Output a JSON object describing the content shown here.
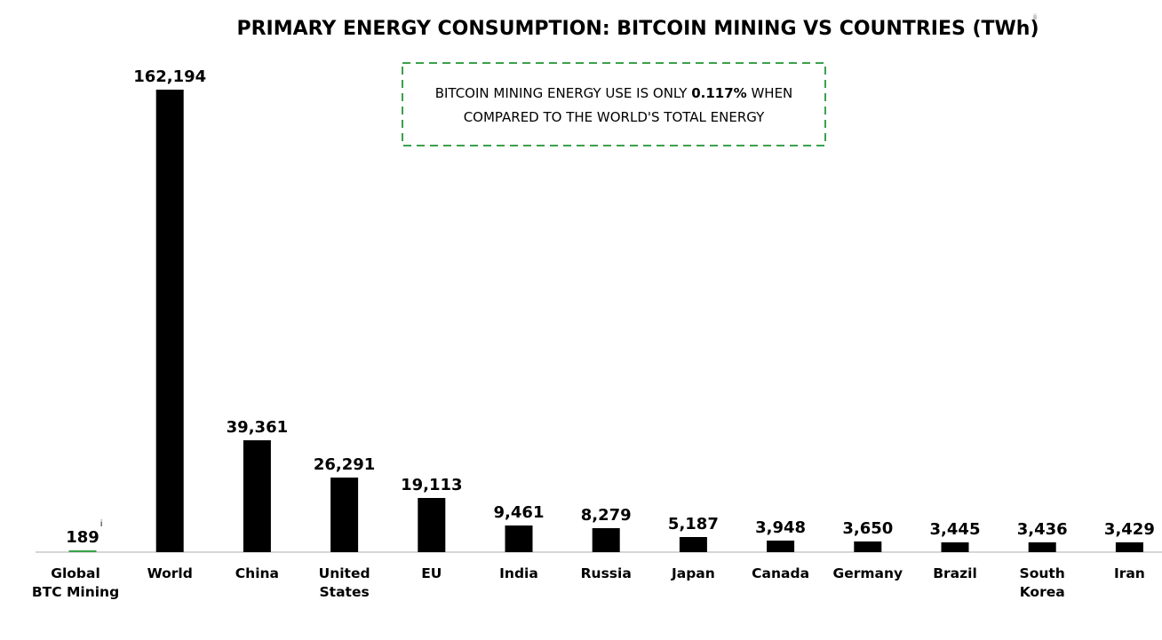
{
  "chart_data": {
    "type": "bar",
    "title": "PRIMARY ENERGY CONSUMPTION: BITCOIN MINING VS COUNTRIES (TWh)",
    "title_footnote": "ii",
    "xlabel": "",
    "ylabel": "",
    "ylim": [
      0,
      162194
    ],
    "grid": false,
    "legend": "none",
    "categories": [
      [
        "Global",
        "BTC Mining"
      ],
      [
        "World"
      ],
      [
        "China"
      ],
      [
        "United",
        "States"
      ],
      [
        "EU"
      ],
      [
        "India"
      ],
      [
        "Russia"
      ],
      [
        "Japan"
      ],
      [
        "Canada"
      ],
      [
        "Germany"
      ],
      [
        "Brazil"
      ],
      [
        "South",
        "Korea"
      ],
      [
        "Iran"
      ]
    ],
    "values": [
      189,
      162194,
      39361,
      26291,
      19113,
      9461,
      8279,
      5187,
      3948,
      3650,
      3445,
      3436,
      3429
    ],
    "value_labels": [
      "189",
      "162,194",
      "39,361",
      "26,291",
      "19,113",
      "9,461",
      "8,279",
      "5,187",
      "3,948",
      "3,650",
      "3,445",
      "3,436",
      "3,429"
    ],
    "value_footnotes": [
      "i",
      "",
      "",
      "",
      "",
      "",
      "",
      "",
      "",
      "",
      "",
      "",
      ""
    ],
    "colors": {
      "highlight": "#3aa14a",
      "bar": "#000000",
      "axis": "#d6d6d6",
      "annotation_border": "#3aa14a"
    },
    "annotation": {
      "line1_before": "BITCOIN MINING ENERGY USE IS ONLY ",
      "line1_bold": "0.117%",
      "line1_after": " WHEN",
      "line2": "COMPARED TO THE WORLD'S TOTAL ENERGY"
    }
  }
}
